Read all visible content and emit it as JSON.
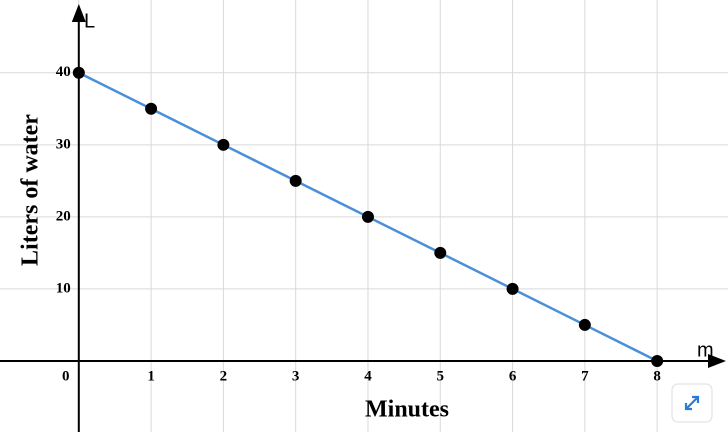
{
  "chart_data": {
    "type": "line",
    "x_axis_label": "Minutes",
    "y_axis_label": "Liters of water",
    "x_axis_letter": "m",
    "y_axis_letter": "L",
    "x": [
      0,
      1,
      2,
      3,
      4,
      5,
      6,
      7,
      8
    ],
    "series": [
      {
        "color": "#4a90d9",
        "values": [
          40,
          35,
          30,
          25,
          20,
          15,
          10,
          5,
          0
        ]
      }
    ],
    "marker_color": "#000000",
    "xlim": [
      -1.09,
      8.98
    ],
    "ylim": [
      -9.86,
      50.1
    ],
    "xticks": [
      0,
      1,
      2,
      3,
      4,
      5,
      6,
      7,
      8
    ],
    "yticks": [
      10,
      20,
      30,
      40
    ],
    "grid": true
  }
}
